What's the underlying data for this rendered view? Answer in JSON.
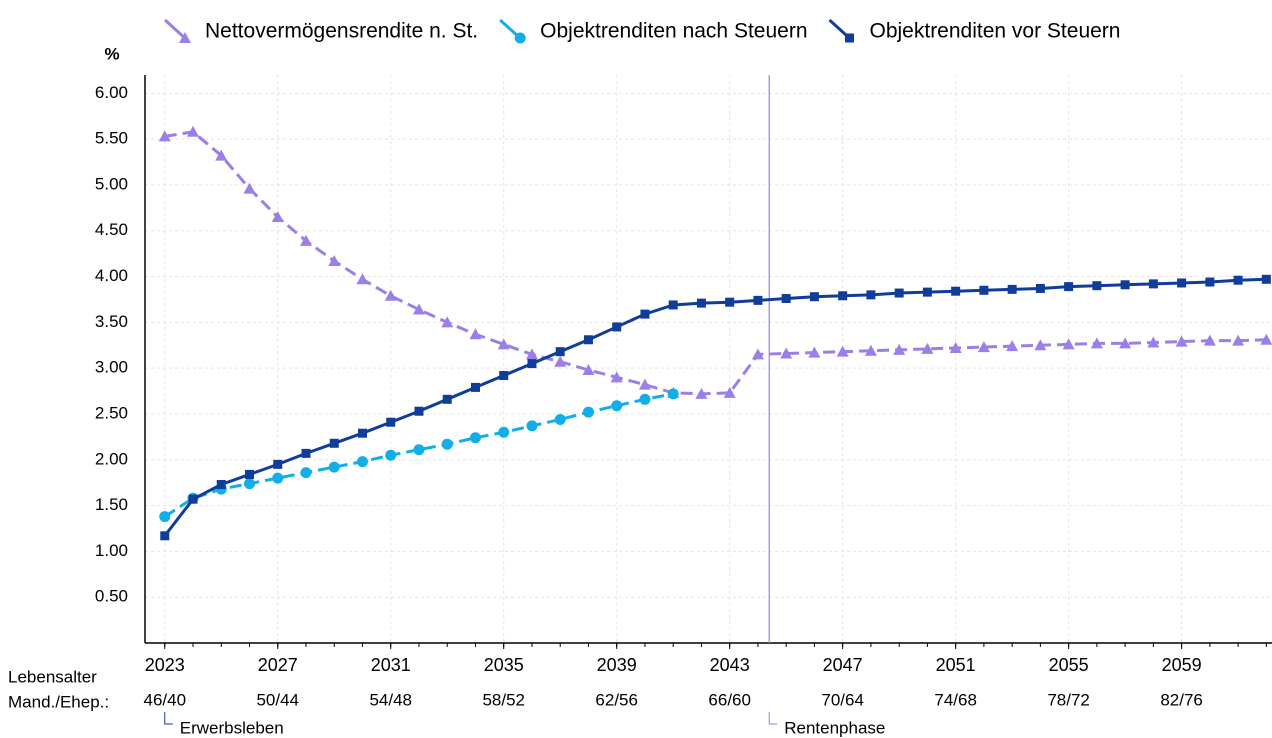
{
  "chart_data": {
    "type": "line",
    "y_unit": "%",
    "x": [
      2023,
      2024,
      2025,
      2026,
      2027,
      2028,
      2029,
      2030,
      2031,
      2032,
      2033,
      2034,
      2035,
      2036,
      2037,
      2038,
      2039,
      2040,
      2041,
      2042,
      2043,
      2044,
      2045,
      2046,
      2047,
      2048,
      2049,
      2050,
      2051,
      2052,
      2053,
      2054,
      2055,
      2056,
      2057,
      2058,
      2059,
      2060,
      2061,
      2062
    ],
    "series": [
      {
        "name": "Nettovermögensrendite n. St.",
        "color": "#9b7fe6",
        "marker": "triangle",
        "dashed": true,
        "values": [
          5.53,
          5.58,
          5.32,
          4.96,
          4.65,
          4.39,
          4.17,
          3.97,
          3.79,
          3.64,
          3.5,
          3.37,
          3.26,
          3.15,
          3.07,
          2.98,
          2.9,
          2.82,
          2.73,
          2.72,
          2.73,
          3.15,
          3.16,
          3.17,
          3.18,
          3.19,
          3.2,
          3.21,
          3.22,
          3.23,
          3.24,
          3.25,
          3.26,
          3.27,
          3.27,
          3.28,
          3.29,
          3.3,
          3.3,
          3.31
        ]
      },
      {
        "name": "Objektrenditen nach Steuern",
        "color": "#12aee8",
        "marker": "circle",
        "dashed": true,
        "values": [
          1.38,
          1.58,
          1.68,
          1.74,
          1.8,
          1.86,
          1.92,
          1.98,
          2.05,
          2.11,
          2.17,
          2.24,
          2.3,
          2.37,
          2.44,
          2.52,
          2.59,
          2.66,
          2.72,
          null,
          null,
          null,
          null,
          null,
          null,
          null,
          null,
          null,
          null,
          null,
          null,
          null,
          null,
          null,
          null,
          null,
          null,
          null,
          null,
          null
        ]
      },
      {
        "name": "Objektrenditen vor Steuern",
        "color": "#0f3d99",
        "marker": "square",
        "dashed": false,
        "values": [
          1.17,
          1.57,
          1.73,
          1.84,
          1.95,
          2.07,
          2.18,
          2.29,
          2.41,
          2.53,
          2.66,
          2.79,
          2.92,
          3.05,
          3.18,
          3.31,
          3.45,
          3.59,
          3.69,
          3.71,
          3.72,
          3.74,
          3.76,
          3.78,
          3.79,
          3.8,
          3.82,
          3.83,
          3.84,
          3.85,
          3.86,
          3.87,
          3.89,
          3.9,
          3.91,
          3.92,
          3.93,
          3.94,
          3.96,
          3.97
        ]
      }
    ],
    "xlim": [
      2022.3,
      2062.2
    ],
    "xticks": [
      2023,
      2027,
      2031,
      2035,
      2039,
      2043,
      2047,
      2051,
      2055,
      2059
    ],
    "age_row_labels": [
      "Lebensalter",
      "Mand./Ehep.:"
    ],
    "age_labels": [
      "46/40",
      "50/44",
      "54/48",
      "58/52",
      "62/56",
      "66/60",
      "70/64",
      "74/68",
      "78/72",
      "82/76"
    ],
    "ylim": [
      0,
      6.2
    ],
    "yticks": [
      {
        "value": 0.5,
        "label": "0.50"
      },
      {
        "value": 1,
        "label": "1.00"
      },
      {
        "value": 1.5,
        "label": "1.50"
      },
      {
        "value": 2,
        "label": "2.00"
      },
      {
        "value": 2.5,
        "label": "2.50"
      },
      {
        "value": 3,
        "label": "3.00"
      },
      {
        "value": 3.5,
        "label": "3.50"
      },
      {
        "value": 4,
        "label": "4.00"
      },
      {
        "value": 4.5,
        "label": "4.50"
      },
      {
        "value": 5,
        "label": "5.00"
      },
      {
        "value": 5.5,
        "label": "5.50"
      },
      {
        "value": 6,
        "label": "6.00"
      }
    ],
    "grid": true,
    "phases": [
      {
        "label": "Erwerbsleben",
        "x": 2023,
        "color": "#0f3d99"
      },
      {
        "label": "Rentenphase",
        "x": 2044.4,
        "color": "#9b7fe6"
      }
    ]
  }
}
